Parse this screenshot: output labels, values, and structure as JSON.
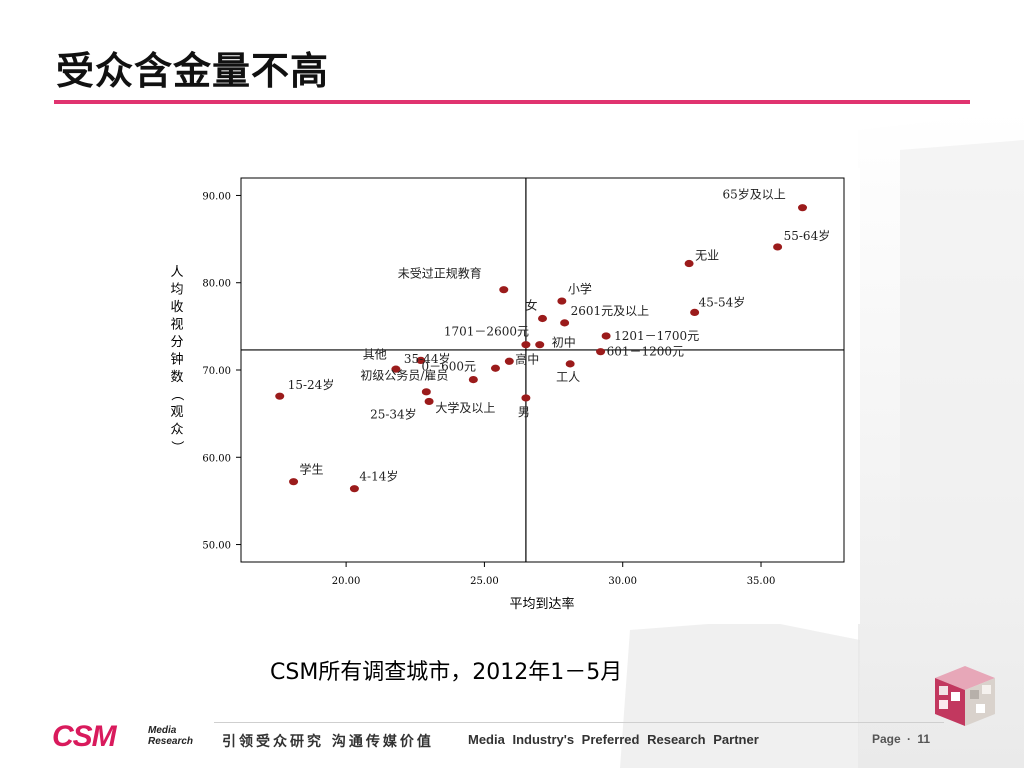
{
  "title": "受众含金量不高",
  "caption": "CSM所有调查城市，2012年1－5月",
  "footer": {
    "logo_main": "CSM",
    "logo_sub_1": "Media",
    "logo_sub_2": "Research",
    "slogan_cn": "引领受众研究 沟通传媒价值",
    "slogan_en": "Media Industry's Preferred Research Partner",
    "page_label": "Page",
    "page_sep": "·",
    "page_number": "11"
  },
  "colors": {
    "accent": "#e0336f",
    "marker": "#9b1b1b",
    "logo": "#d91a5c"
  },
  "icons": {
    "cube": "photo-cube-icon"
  },
  "chart_data": {
    "type": "scatter",
    "xlabel": "平均到达率",
    "ylabel": "人均收视分钟数（观众）",
    "xlim": [
      16.2,
      38.0
    ],
    "ylim": [
      48.0,
      92.0
    ],
    "xticks": [
      20,
      25,
      30,
      35
    ],
    "yticks": [
      50,
      60,
      70,
      80,
      90
    ],
    "xtick_labels": [
      "20.00",
      "25.00",
      "30.00",
      "35.00"
    ],
    "ytick_labels": [
      "50.00",
      "60.00",
      "70.00",
      "80.00",
      "90.00"
    ],
    "reference_lines": {
      "x": 26.5,
      "y": 72.3
    },
    "grid": false,
    "points": [
      {
        "label": "65岁及以上",
        "x": 36.5,
        "y": 88.6
      },
      {
        "label": "55-64岁",
        "x": 35.6,
        "y": 84.1
      },
      {
        "label": "无业",
        "x": 32.4,
        "y": 82.2
      },
      {
        "label": "未受过正规教育",
        "x": 25.7,
        "y": 79.2
      },
      {
        "label": "小学",
        "x": 27.8,
        "y": 77.9
      },
      {
        "label": "女",
        "x": 27.1,
        "y": 75.9
      },
      {
        "label": "45-54岁",
        "x": 32.6,
        "y": 76.6
      },
      {
        "label": "2601元及以上",
        "x": 27.9,
        "y": 75.4
      },
      {
        "label": "1701－2600元",
        "x": 26.5,
        "y": 72.9
      },
      {
        "label": "初中",
        "x": 27.0,
        "y": 72.9
      },
      {
        "label": "1201－1700元",
        "x": 29.4,
        "y": 73.9
      },
      {
        "label": "其他",
        "x": 22.7,
        "y": 71.1
      },
      {
        "label": "0－600元",
        "x": 25.4,
        "y": 70.2
      },
      {
        "label": "高中",
        "x": 25.9,
        "y": 71.0
      },
      {
        "label": "601－1200元",
        "x": 29.2,
        "y": 72.1
      },
      {
        "label": "工人",
        "x": 28.1,
        "y": 70.7
      },
      {
        "label": "初级公务员/雇员",
        "x": 24.6,
        "y": 68.9
      },
      {
        "label": "15-24岁",
        "x": 17.6,
        "y": 67.0
      },
      {
        "label": "男",
        "x": 26.5,
        "y": 66.8
      },
      {
        "label": "25-34岁",
        "x": 23.0,
        "y": 66.4
      },
      {
        "label": "大学及以上",
        "x": 22.9,
        "y": 67.5
      },
      {
        "label": "35-44岁",
        "x": 21.8,
        "y": 70.1
      },
      {
        "label": "学生",
        "x": 18.1,
        "y": 57.2
      },
      {
        "label": "4-14岁",
        "x": 20.3,
        "y": 56.4
      }
    ]
  }
}
